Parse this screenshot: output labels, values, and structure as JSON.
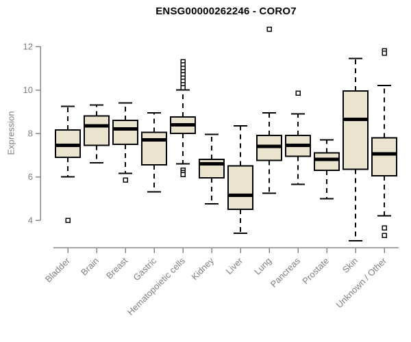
{
  "chart_data": {
    "type": "boxplot",
    "title": "ENSG00000262246 - CORO7",
    "ylabel": "Expression",
    "xlabel": "",
    "yticks": [
      4,
      6,
      8,
      10,
      12
    ],
    "ylim": [
      2.6,
      13.2
    ],
    "grid": false,
    "legend_position": "none",
    "categories": [
      "Bladder",
      "Brain",
      "Breast",
      "Gastric",
      "Hematopoietic cells",
      "Kidney",
      "Liver",
      "Lung",
      "Pancreas",
      "Prostate",
      "Skin",
      "Unknown / Other"
    ],
    "boxes": [
      {
        "category": "Bladder",
        "whisker_low": 6.0,
        "q1": 6.9,
        "median": 7.45,
        "q3": 8.15,
        "whisker_high": 9.25,
        "outliers": [
          4.0
        ]
      },
      {
        "category": "Brain",
        "whisker_low": 6.65,
        "q1": 7.45,
        "median": 8.35,
        "q3": 8.8,
        "whisker_high": 9.3,
        "outliers": []
      },
      {
        "category": "Breast",
        "whisker_low": 6.15,
        "q1": 7.5,
        "median": 8.2,
        "q3": 8.6,
        "whisker_high": 9.4,
        "outliers": [
          5.85
        ]
      },
      {
        "category": "Gastric",
        "whisker_low": 5.3,
        "q1": 6.55,
        "median": 7.7,
        "q3": 8.05,
        "whisker_high": 8.95,
        "outliers": []
      },
      {
        "category": "Hematopoietic cells",
        "whisker_low": 6.6,
        "q1": 8.0,
        "median": 8.4,
        "q3": 8.75,
        "whisker_high": 10.0,
        "outliers": [
          11.3,
          11.15,
          11.0,
          10.85,
          10.7,
          10.55,
          10.4,
          10.25,
          10.1,
          6.3,
          6.2,
          6.1
        ]
      },
      {
        "category": "Kidney",
        "whisker_low": 4.75,
        "q1": 5.95,
        "median": 6.6,
        "q3": 6.8,
        "whisker_high": 7.95,
        "outliers": []
      },
      {
        "category": "Liver",
        "whisker_low": 3.4,
        "q1": 4.5,
        "median": 5.15,
        "q3": 6.5,
        "whisker_high": 8.35,
        "outliers": []
      },
      {
        "category": "Lung",
        "whisker_low": 5.25,
        "q1": 6.75,
        "median": 7.4,
        "q3": 7.9,
        "whisker_high": 8.95,
        "outliers": [
          12.8
        ]
      },
      {
        "category": "Pancreas",
        "whisker_low": 5.65,
        "q1": 6.95,
        "median": 7.45,
        "q3": 7.9,
        "whisker_high": 8.9,
        "outliers": [
          9.85
        ]
      },
      {
        "category": "Prostate",
        "whisker_low": 5.0,
        "q1": 6.3,
        "median": 6.8,
        "q3": 7.1,
        "whisker_high": 7.7,
        "outliers": []
      },
      {
        "category": "Skin",
        "whisker_low": 3.05,
        "q1": 6.35,
        "median": 8.65,
        "q3": 9.95,
        "whisker_high": 11.45,
        "outliers": []
      },
      {
        "category": "Unknown / Other",
        "whisker_low": 4.2,
        "q1": 6.05,
        "median": 7.05,
        "q3": 7.8,
        "whisker_high": 10.2,
        "outliers": [
          11.8,
          11.7,
          3.65,
          3.3
        ]
      }
    ],
    "colors": {
      "box_fill": "#EAE4CE",
      "box_border": "#000000",
      "median": "#000000",
      "whisker": "#000000",
      "outlier_stroke": "#000000",
      "outlier_fill": "#FFFFFF",
      "axis": "#888888",
      "tick_label": "#7F7F7F",
      "title": "#000000",
      "background": "#FFFFFF"
    }
  }
}
